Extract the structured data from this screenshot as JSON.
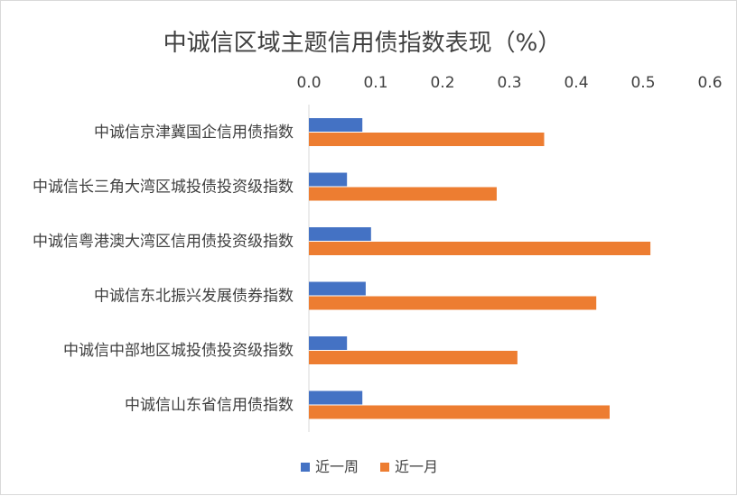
{
  "chart_data": {
    "type": "bar",
    "orientation": "horizontal",
    "title": "中诚信区域主题信用债指数表现（%）",
    "categories": [
      "中诚信京津冀国企信用债指数",
      "中诚信长三角大湾区城投债投资级指数",
      "中诚信粤港澳大湾区信用债投资级指数",
      "中诚信东北振兴发展债券指数",
      "中诚信中部地区城投债投资级指数",
      "中诚信山东省信用债指数"
    ],
    "series": [
      {
        "name": "近一周",
        "color": "#4472c4",
        "values": [
          0.08,
          0.057,
          0.093,
          0.085,
          0.057,
          0.08
        ]
      },
      {
        "name": "近一月",
        "color": "#ed7d31",
        "values": [
          0.352,
          0.281,
          0.511,
          0.43,
          0.312,
          0.45
        ]
      }
    ],
    "x_ticks": [
      "0.0",
      "0.1",
      "0.2",
      "0.3",
      "0.4",
      "0.5",
      "0.6"
    ],
    "xlim": [
      0,
      0.6
    ],
    "x_axis_position": "top",
    "grid": false,
    "legend_position": "bottom"
  }
}
